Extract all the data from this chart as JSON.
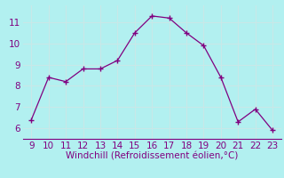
{
  "x": [
    9,
    10,
    11,
    12,
    13,
    14,
    15,
    16,
    17,
    18,
    19,
    20,
    21,
    22,
    23
  ],
  "y": [
    6.4,
    8.4,
    8.2,
    8.8,
    8.8,
    9.2,
    10.5,
    11.3,
    11.2,
    10.5,
    9.9,
    8.4,
    6.3,
    6.9,
    5.9
  ],
  "line_color": "#800080",
  "marker": "+",
  "background_color": "#b2f0f0",
  "grid_color": "#c8e8e8",
  "xlabel": "Windchill (Refroidissement éolien,°C)",
  "xlabel_color": "#800080",
  "tick_color": "#800080",
  "xlim": [
    8.5,
    23.5
  ],
  "ylim": [
    5.5,
    11.8
  ],
  "xticks": [
    9,
    10,
    11,
    12,
    13,
    14,
    15,
    16,
    17,
    18,
    19,
    20,
    21,
    22,
    23
  ],
  "yticks": [
    6,
    7,
    8,
    9,
    10,
    11
  ],
  "axis_fontsize": 7.5,
  "tick_fontsize": 7.5
}
